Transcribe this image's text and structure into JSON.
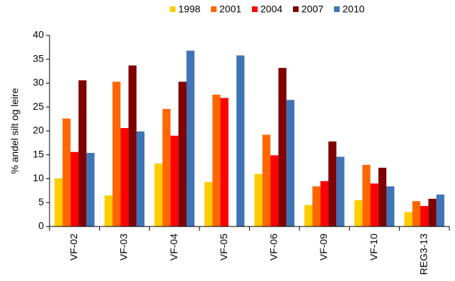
{
  "chart_data": {
    "type": "bar",
    "y_label": "% andel silt og leire",
    "categories": [
      "VF-02",
      "VF-03",
      "VF-04",
      "VF-05",
      "VF-06",
      "VF-09",
      "VF-10",
      "REG3-13"
    ],
    "series": [
      {
        "name": "1998",
        "color": "#FFCC00",
        "values": [
          10.1,
          6.5,
          13.2,
          9.3,
          11.0,
          4.5,
          5.5,
          3.0
        ]
      },
      {
        "name": "2001",
        "color": "#FF6600",
        "values": [
          22.6,
          30.3,
          24.6,
          27.6,
          19.2,
          8.4,
          12.9,
          5.3
        ]
      },
      {
        "name": "2004",
        "color": "#FF0000",
        "values": [
          15.6,
          20.6,
          19.0,
          26.9,
          14.9,
          9.5,
          9.0,
          4.3
        ]
      },
      {
        "name": "2007",
        "color": "#800000",
        "values": [
          30.6,
          33.7,
          30.3,
          null,
          33.2,
          17.8,
          12.3,
          5.8
        ]
      },
      {
        "name": "2010",
        "color": "#3F74B6",
        "values": [
          15.4,
          19.9,
          36.8,
          35.8,
          26.5,
          14.6,
          8.4,
          6.7
        ]
      }
    ],
    "ylim": [
      0,
      40
    ],
    "yticks": [
      0,
      5,
      10,
      15,
      20,
      25,
      30,
      35,
      40
    ],
    "grid": false,
    "legend": "top"
  }
}
